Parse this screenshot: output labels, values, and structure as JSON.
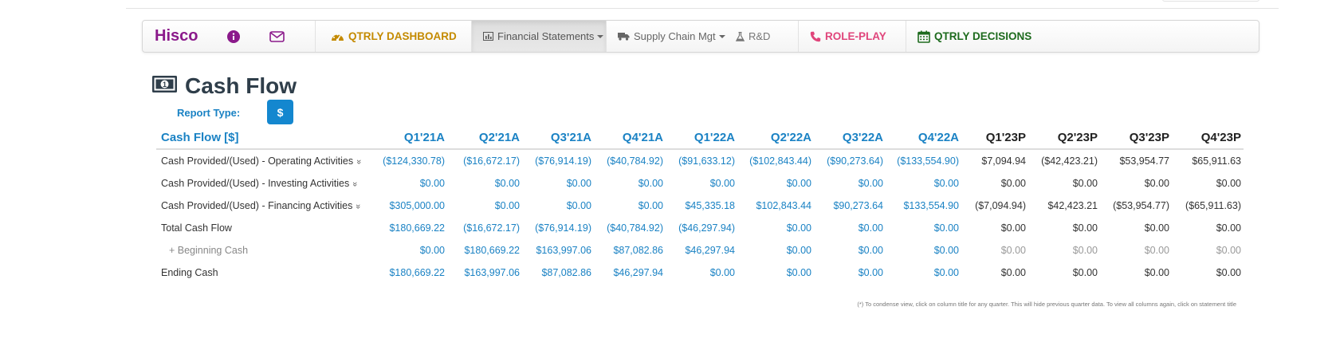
{
  "nav": {
    "brand": "Hisco",
    "items": [
      {
        "label": "QTRLY DASHBOARD",
        "icon": "dashboard-gauge-icon",
        "color": "#c48a00"
      },
      {
        "label": "Financial Statements",
        "icon": "bar-chart-icon",
        "active": true
      },
      {
        "label": "Supply Chain Mgt",
        "icon": "truck-icon"
      },
      {
        "label": "R&D",
        "icon": "flask-icon"
      },
      {
        "label": "ROLE-PLAY",
        "icon": "phone-icon",
        "color": "#e0457b"
      },
      {
        "label": "QTRLY DECISIONS",
        "icon": "calendar-icon",
        "color": "#1e6b1e"
      }
    ]
  },
  "page": {
    "title": "Cash Flow",
    "title_icon": "money-bill-icon",
    "report_type_label": "Report Type:",
    "report_type_button": "$"
  },
  "table": {
    "header_label": "Cash Flow [$]",
    "columns": [
      "Q1'21A",
      "Q2'21A",
      "Q3'21A",
      "Q4'21A",
      "Q1'22A",
      "Q2'22A",
      "Q3'22A",
      "Q4'22A",
      "Q1'23P",
      "Q2'23P",
      "Q3'23P",
      "Q4'23P"
    ],
    "rows": [
      {
        "label": "Cash Provided/(Used) - Operating Activities",
        "values": [
          "($124,330.78)",
          "($16,672.17)",
          "($76,914.19)",
          "($40,784.92)",
          "($91,633.12)",
          "($102,843.44)",
          "($90,273.64)",
          "($133,554.90)",
          "$7,094.94",
          "($42,423.21)",
          "$53,954.77",
          "$65,911.63"
        ]
      },
      {
        "label": "Cash Provided/(Used) - Investing Activities",
        "values": [
          "$0.00",
          "$0.00",
          "$0.00",
          "$0.00",
          "$0.00",
          "$0.00",
          "$0.00",
          "$0.00",
          "$0.00",
          "$0.00",
          "$0.00",
          "$0.00"
        ]
      },
      {
        "label": "Cash Provided/(Used) - Financing Activities",
        "values": [
          "$305,000.00",
          "$0.00",
          "$0.00",
          "$0.00",
          "$45,335.18",
          "$102,843.44",
          "$90,273.64",
          "$133,554.90",
          "($7,094.94)",
          "$42,423.21",
          "($53,954.77)",
          "($65,911.63)"
        ]
      },
      {
        "label": "Total Cash Flow",
        "values": [
          "$180,669.22",
          "($16,672.17)",
          "($76,914.19)",
          "($40,784.92)",
          "($46,297.94)",
          "$0.00",
          "$0.00",
          "$0.00",
          "$0.00",
          "$0.00",
          "$0.00",
          "$0.00"
        ]
      },
      {
        "label": "+ Beginning Cash",
        "values": [
          "$0.00",
          "$180,669.22",
          "$163,997.06",
          "$87,082.86",
          "$46,297.94",
          "$0.00",
          "$0.00",
          "$0.00",
          "$0.00",
          "$0.00",
          "$0.00",
          "$0.00"
        ]
      },
      {
        "label": "Ending Cash",
        "values": [
          "$180,669.22",
          "$163,997.06",
          "$87,082.86",
          "$46,297.94",
          "$0.00",
          "$0.00",
          "$0.00",
          "$0.00",
          "$0.00",
          "$0.00",
          "$0.00",
          "$0.00"
        ]
      }
    ],
    "expand_icon": "double-chevron-down-icon"
  },
  "footnote": "(*) To condense view, click on column title for any quarter. This will hide previous quarter data. To view all columns again, click on statement title",
  "colors": {
    "actual": "#1a82c4",
    "projected": "#222222",
    "brand": "#8b1a8b",
    "button": "#1487cf"
  }
}
